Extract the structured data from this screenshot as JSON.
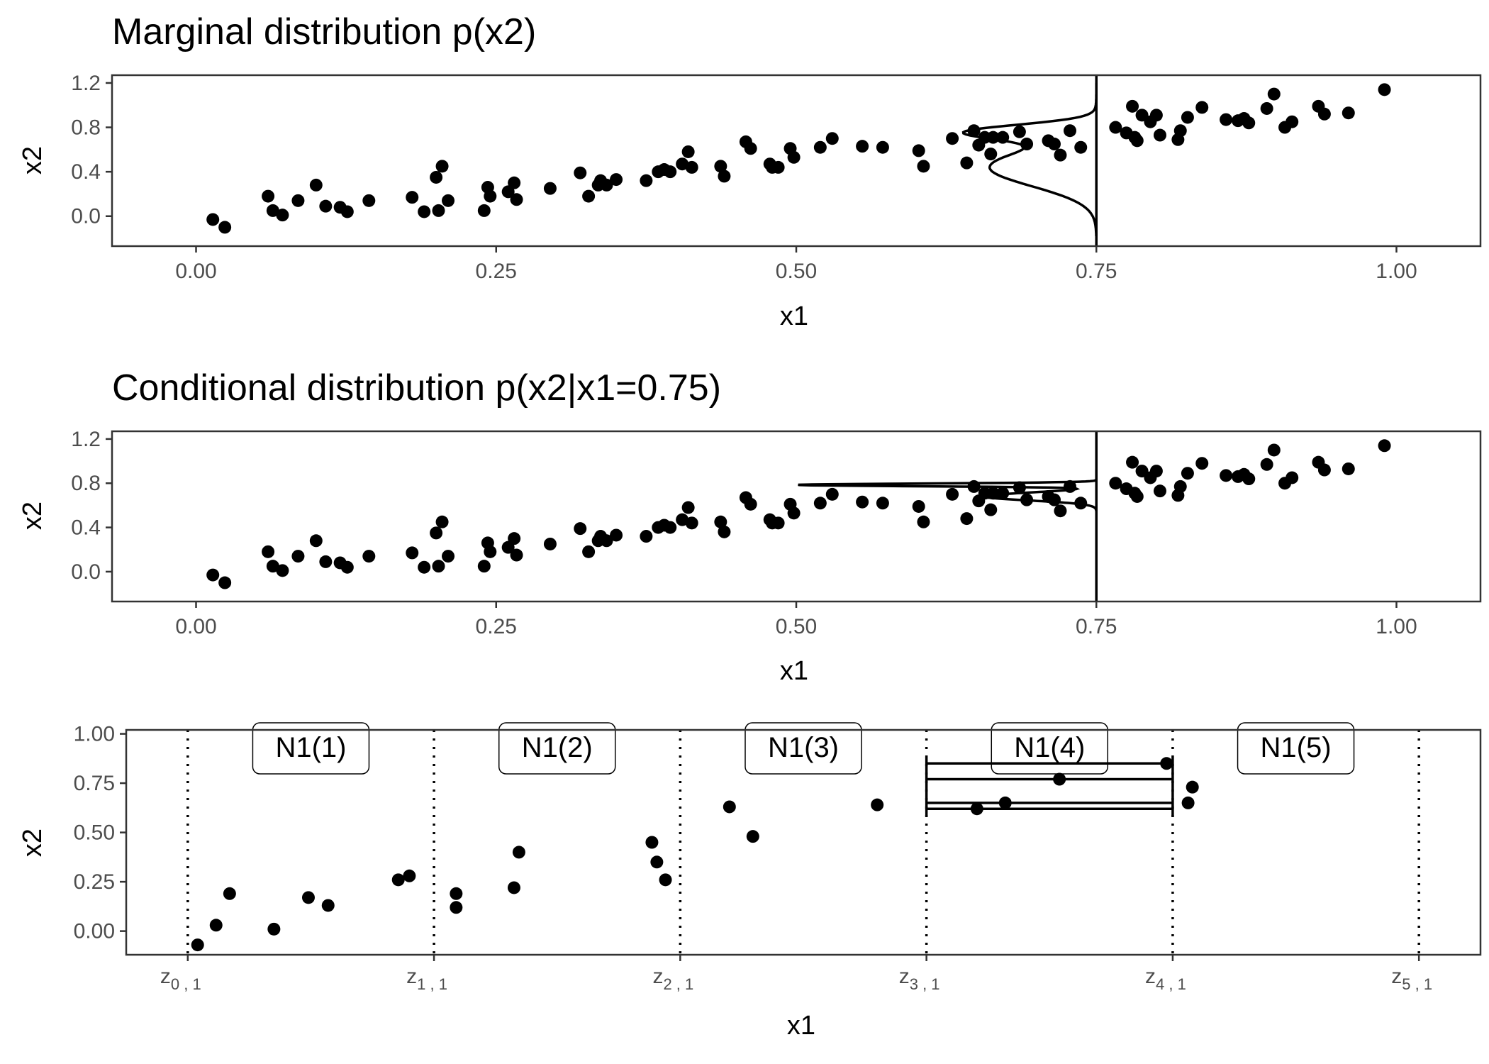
{
  "chart_data": [
    {
      "type": "scatter",
      "title": "Marginal distribution p(x2)",
      "xlabel": "x1",
      "ylabel": "x2",
      "xlim": [
        -0.07,
        1.07
      ],
      "ylim": [
        -0.27,
        1.27
      ],
      "xticks": [
        "0.00",
        "0.25",
        "0.50",
        "0.75",
        "1.00"
      ],
      "yticks": [
        "0.0",
        "0.4",
        "0.8",
        "1.2"
      ],
      "vline_x": 0.75,
      "density_curve": "marginal density of x2 drawn at x1 = 0.75",
      "grid": false,
      "points": [
        [
          0.014,
          -0.03
        ],
        [
          0.024,
          -0.1
        ],
        [
          0.06,
          0.18
        ],
        [
          0.064,
          0.05
        ],
        [
          0.072,
          0.01
        ],
        [
          0.085,
          0.14
        ],
        [
          0.1,
          0.28
        ],
        [
          0.108,
          0.09
        ],
        [
          0.12,
          0.08
        ],
        [
          0.126,
          0.04
        ],
        [
          0.144,
          0.14
        ],
        [
          0.18,
          0.17
        ],
        [
          0.19,
          0.04
        ],
        [
          0.2,
          0.35
        ],
        [
          0.202,
          0.05
        ],
        [
          0.205,
          0.45
        ],
        [
          0.21,
          0.14
        ],
        [
          0.24,
          0.05
        ],
        [
          0.243,
          0.26
        ],
        [
          0.245,
          0.18
        ],
        [
          0.26,
          0.22
        ],
        [
          0.265,
          0.3
        ],
        [
          0.267,
          0.15
        ],
        [
          0.295,
          0.25
        ],
        [
          0.32,
          0.39
        ],
        [
          0.327,
          0.18
        ],
        [
          0.335,
          0.28
        ],
        [
          0.337,
          0.32
        ],
        [
          0.342,
          0.28
        ],
        [
          0.35,
          0.33
        ],
        [
          0.375,
          0.32
        ],
        [
          0.385,
          0.4
        ],
        [
          0.39,
          0.42
        ],
        [
          0.395,
          0.4
        ],
        [
          0.405,
          0.47
        ],
        [
          0.41,
          0.58
        ],
        [
          0.413,
          0.44
        ],
        [
          0.437,
          0.45
        ],
        [
          0.44,
          0.36
        ],
        [
          0.458,
          0.67
        ],
        [
          0.462,
          0.61
        ],
        [
          0.478,
          0.47
        ],
        [
          0.48,
          0.44
        ],
        [
          0.485,
          0.44
        ],
        [
          0.495,
          0.61
        ],
        [
          0.498,
          0.53
        ],
        [
          0.52,
          0.62
        ],
        [
          0.53,
          0.7
        ],
        [
          0.555,
          0.63
        ],
        [
          0.572,
          0.62
        ],
        [
          0.602,
          0.59
        ],
        [
          0.606,
          0.45
        ],
        [
          0.63,
          0.7
        ],
        [
          0.642,
          0.48
        ],
        [
          0.648,
          0.77
        ],
        [
          0.652,
          0.64
        ],
        [
          0.657,
          0.71
        ],
        [
          0.662,
          0.56
        ],
        [
          0.664,
          0.71
        ],
        [
          0.672,
          0.71
        ],
        [
          0.686,
          0.76
        ],
        [
          0.692,
          0.65
        ],
        [
          0.71,
          0.68
        ],
        [
          0.715,
          0.65
        ],
        [
          0.72,
          0.55
        ],
        [
          0.728,
          0.77
        ],
        [
          0.737,
          0.62
        ],
        [
          0.766,
          0.8
        ],
        [
          0.775,
          0.75
        ],
        [
          0.78,
          0.99
        ],
        [
          0.782,
          0.71
        ],
        [
          0.784,
          0.68
        ],
        [
          0.788,
          0.91
        ],
        [
          0.795,
          0.85
        ],
        [
          0.8,
          0.91
        ],
        [
          0.803,
          0.73
        ],
        [
          0.818,
          0.69
        ],
        [
          0.82,
          0.77
        ],
        [
          0.826,
          0.89
        ],
        [
          0.838,
          0.98
        ],
        [
          0.858,
          0.87
        ],
        [
          0.868,
          0.86
        ],
        [
          0.873,
          0.88
        ],
        [
          0.877,
          0.84
        ],
        [
          0.892,
          0.97
        ],
        [
          0.898,
          1.1
        ],
        [
          0.907,
          0.8
        ],
        [
          0.913,
          0.85
        ],
        [
          0.935,
          0.99
        ],
        [
          0.94,
          0.92
        ],
        [
          0.96,
          0.93
        ],
        [
          0.99,
          1.14
        ]
      ]
    },
    {
      "type": "scatter",
      "title": "Conditional distribution p(x2|x1=0.75)",
      "xlabel": "x1",
      "ylabel": "x2",
      "xlim": [
        -0.07,
        1.07
      ],
      "ylim": [
        -0.27,
        1.27
      ],
      "xticks": [
        "0.00",
        "0.25",
        "0.50",
        "0.75",
        "1.00"
      ],
      "yticks": [
        "0.0",
        "0.4",
        "0.8",
        "1.2"
      ],
      "vline_x": 0.75,
      "density_curve": "conditional density of x2 given x1 = 0.75",
      "grid": false,
      "points": "same as panel 1"
    },
    {
      "type": "scatter",
      "xlabel": "x1",
      "ylabel": "x2",
      "xlim": [
        -0.1,
        2.1
      ],
      "ylim": [
        -0.12,
        1.02
      ],
      "yticks": [
        "0.00",
        "0.25",
        "0.50",
        "0.75",
        "1.00"
      ],
      "xticks": [
        "z0,1",
        "z1,1",
        "z2,1",
        "z3,1",
        "z4,1",
        "z5,1"
      ],
      "xtick_labels": [
        {
          "main": "z",
          "sub": "0 , 1"
        },
        {
          "main": "z",
          "sub": "1 , 1"
        },
        {
          "main": "z",
          "sub": "2 , 1"
        },
        {
          "main": "z",
          "sub": "3 , 1"
        },
        {
          "main": "z",
          "sub": "4 , 1"
        },
        {
          "main": "z",
          "sub": "5 , 1"
        }
      ],
      "bins": [
        "N1(1)",
        "N1(2)",
        "N1(3)",
        "N1(4)",
        "N1(5)"
      ],
      "bin_edges": [
        0,
        0.4,
        0.8,
        1.2,
        1.6,
        2.0
      ],
      "highlighted_bin": "N1(4)",
      "highlighted_bin_segments_y": [
        0.85,
        0.77,
        0.65,
        0.62
      ],
      "grid": false,
      "points": [
        [
          0.016,
          -0.07
        ],
        [
          0.046,
          0.03
        ],
        [
          0.068,
          0.19
        ],
        [
          0.14,
          0.01
        ],
        [
          0.196,
          0.17
        ],
        [
          0.228,
          0.13
        ],
        [
          0.342,
          0.26
        ],
        [
          0.36,
          0.28
        ],
        [
          0.436,
          0.19
        ],
        [
          0.436,
          0.12
        ],
        [
          0.53,
          0.22
        ],
        [
          0.538,
          0.4
        ],
        [
          0.754,
          0.45
        ],
        [
          0.762,
          0.35
        ],
        [
          0.776,
          0.26
        ],
        [
          0.88,
          0.63
        ],
        [
          0.918,
          0.48
        ],
        [
          1.12,
          0.64
        ],
        [
          1.282,
          0.62
        ],
        [
          1.328,
          0.65
        ],
        [
          1.416,
          0.77
        ],
        [
          1.59,
          0.85
        ],
        [
          1.625,
          0.65
        ],
        [
          1.632,
          0.73
        ]
      ]
    }
  ]
}
